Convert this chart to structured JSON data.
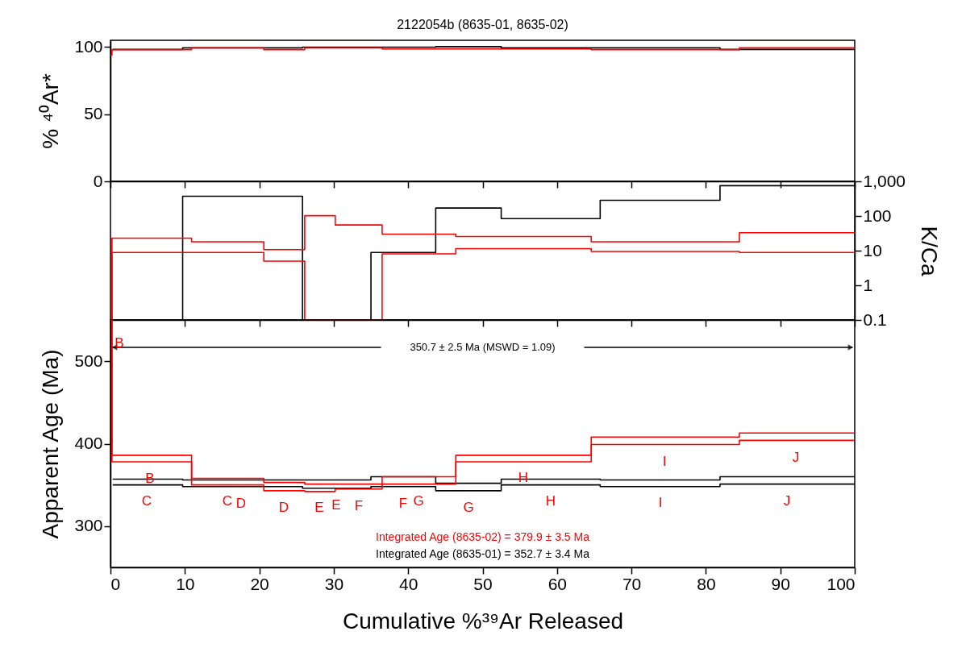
{
  "chart_data": [
    {
      "type": "step",
      "title": "2122054b (8635-01, 8635-02)",
      "ylabel": "% ⁴⁰Ar*",
      "xlim": [
        0,
        100
      ],
      "xticks": [
        0,
        10,
        20,
        30,
        40,
        50,
        60,
        70,
        80,
        90,
        100
      ],
      "ylim": [
        0,
        105
      ],
      "yticks": [
        0,
        50,
        100
      ],
      "tick_labels": "y",
      "series": [
        {
          "color": "#000000",
          "x": [
            0.3,
            9.7,
            20.6,
            25.8,
            35.0,
            43.7,
            52.5,
            65.8,
            81.9,
            100
          ],
          "values": [
            98.2,
            99.4,
            99.4,
            99.9,
            99.9,
            100.3,
            99.4,
            99.4,
            98.2,
            98.2
          ]
        },
        {
          "color": "#ff0000",
          "x": [
            0,
            0.2,
            10.9,
            20.6,
            26.1,
            30.2,
            36.5,
            46.4,
            64.6,
            84.5,
            100
          ],
          "values": [
            94,
            98,
            99.4,
            98,
            99.4,
            99.4,
            98.6,
            98.6,
            98,
            99.4,
            99.4
          ]
        }
      ]
    },
    {
      "type": "step",
      "y2label": "K/Ca",
      "log": "y2",
      "xlim": [
        0,
        100
      ],
      "xticks": [
        0,
        10,
        20,
        30,
        40,
        50,
        60,
        70,
        80,
        90,
        100
      ],
      "y2lim": [
        0.1,
        1000
      ],
      "y2ticks": [
        0.1,
        1,
        10,
        100,
        {
          "value": 1000,
          "label": "1,000"
        }
      ],
      "tick_labels": "y",
      "series": [
        {
          "color": "#000000",
          "axis": "y2",
          "x": [
            0.3,
            9.7,
            20.6,
            25.8,
            35.0,
            43.7,
            52.5,
            65.8,
            81.9,
            100
          ],
          "values": [
            0.1,
            370,
            370,
            0.1,
            8.9,
            170,
            84,
            285,
            750,
            750
          ]
        },
        {
          "color": "#ff0000",
          "axis": "y2",
          "x": [
            0,
            0.2,
            10.9,
            20.6,
            26.1,
            30.2,
            36.5,
            46.4,
            64.6,
            84.5,
            100
          ],
          "values": [
            0.1,
            23,
            18,
            10.7,
            102,
            55,
            30,
            25.5,
            18,
            33,
            33
          ]
        },
        {
          "color": "#ff0000",
          "axis": "y2",
          "x": [
            0,
            0.2,
            10.9,
            20.6,
            26.1,
            36.5,
            46.4,
            64.6,
            84.5,
            100
          ],
          "values": [
            0.1,
            8.9,
            8.9,
            5.0,
            0.1,
            8.1,
            11.4,
            9.5,
            8.9,
            8.9
          ]
        }
      ]
    },
    {
      "type": "step",
      "xlabel": "Cumulative %³⁹Ar Released",
      "ylabel": "Apparent Age (Ma)",
      "xlim": [
        0,
        100
      ],
      "xticks": [
        0,
        10,
        20,
        30,
        40,
        50,
        60,
        70,
        80,
        90,
        100
      ],
      "ylim": [
        250,
        550
      ],
      "yticks": [
        300,
        400,
        500
      ],
      "series": [
        {
          "color": "#000000",
          "x": [
            0.3,
            9.7,
            20.6,
            25.8,
            35.0,
            43.7,
            52.5,
            65.8,
            81.9,
            100
          ],
          "values": [
            357,
            356,
            356,
            356,
            360,
            352,
            357,
            356,
            360,
            360
          ]
        },
        {
          "color": "#000000",
          "x": [
            0.3,
            9.7,
            20.6,
            25.8,
            35.0,
            43.7,
            52.5,
            65.8,
            81.9,
            100
          ],
          "values": [
            350,
            348,
            348,
            346,
            348,
            343,
            350,
            348,
            351,
            351
          ]
        },
        {
          "color": "#ff0000",
          "x": [
            0,
            0.2,
            10.9,
            20.6,
            26.1,
            30.2,
            36.5,
            46.4,
            64.6,
            84.5,
            100
          ],
          "values": [
            550,
            386,
            358,
            353,
            351,
            351,
            360,
            386,
            408,
            413,
            413
          ]
        },
        {
          "color": "#ff0000",
          "x": [
            0,
            0.2,
            10.9,
            20.6,
            26.1,
            30.2,
            36.5,
            46.4,
            64.6,
            84.5,
            100
          ],
          "values": [
            550,
            378,
            350,
            343,
            342,
            345,
            351,
            378,
            399,
            404,
            404
          ]
        }
      ],
      "annotations": [
        "350.7 ± 2.5 Ma (MSWD = 1.09)",
        "Integrated Age (8635-02) = 379.9 ± 3.5 Ma",
        "Integrated Age (8635-01) = 352.7 ± 3.4 Ma",
        "B",
        "B",
        "C",
        "C",
        "D",
        "D",
        "E",
        "E",
        "F",
        "F",
        "G",
        "G",
        "H",
        "H",
        "I",
        "I",
        "J",
        "J"
      ]
    }
  ]
}
